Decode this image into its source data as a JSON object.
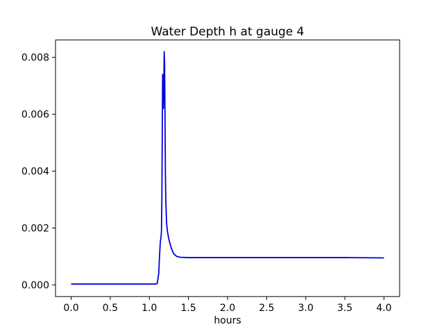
{
  "figure": {
    "background": "#ffffff",
    "frame_color": "#000000",
    "text_color": "#000000"
  },
  "chart_data": {
    "type": "line",
    "title": "Water Depth h at gauge 4",
    "xlabel": "hours",
    "ylabel": "",
    "legend": "none",
    "grid": false,
    "line_color": "#0000dd",
    "line_width": 1.8,
    "xlim": [
      -0.2,
      4.2
    ],
    "ylim": [
      -0.00041,
      0.00861
    ],
    "xticks": [
      0.0,
      0.5,
      1.0,
      1.5,
      2.0,
      2.5,
      3.0,
      3.5,
      4.0
    ],
    "xtick_labels": [
      "0.0",
      "0.5",
      "1.0",
      "1.5",
      "2.0",
      "2.5",
      "3.0",
      "3.5",
      "4.0"
    ],
    "yticks": [
      0.0,
      0.002,
      0.004,
      0.006,
      0.008
    ],
    "ytick_labels": [
      "0.000",
      "0.002",
      "0.004",
      "0.006",
      "0.008"
    ],
    "series": [
      {
        "name": "water-depth-h-gauge-4",
        "x": [
          0.0,
          0.5,
          1.0,
          1.08,
          1.1,
          1.12,
          1.13,
          1.14,
          1.15,
          1.155,
          1.16,
          1.165,
          1.17,
          1.175,
          1.18,
          1.185,
          1.19,
          1.195,
          1.2,
          1.205,
          1.21,
          1.22,
          1.23,
          1.25,
          1.28,
          1.31,
          1.35,
          1.4,
          1.5,
          1.75,
          2.0,
          2.5,
          3.0,
          3.5,
          4.0
        ],
        "y": [
          3e-05,
          3e-05,
          3e-05,
          3e-05,
          5e-05,
          0.0004,
          0.001,
          0.0015,
          0.0017,
          0.0019,
          0.003,
          0.0052,
          0.0074,
          0.0064,
          0.0062,
          0.007,
          0.0082,
          0.0078,
          0.006,
          0.004,
          0.003,
          0.0022,
          0.0019,
          0.0016,
          0.0013,
          0.0011,
          0.001,
          0.00097,
          0.00096,
          0.00096,
          0.00096,
          0.00096,
          0.00096,
          0.00096,
          0.00095
        ]
      }
    ]
  }
}
